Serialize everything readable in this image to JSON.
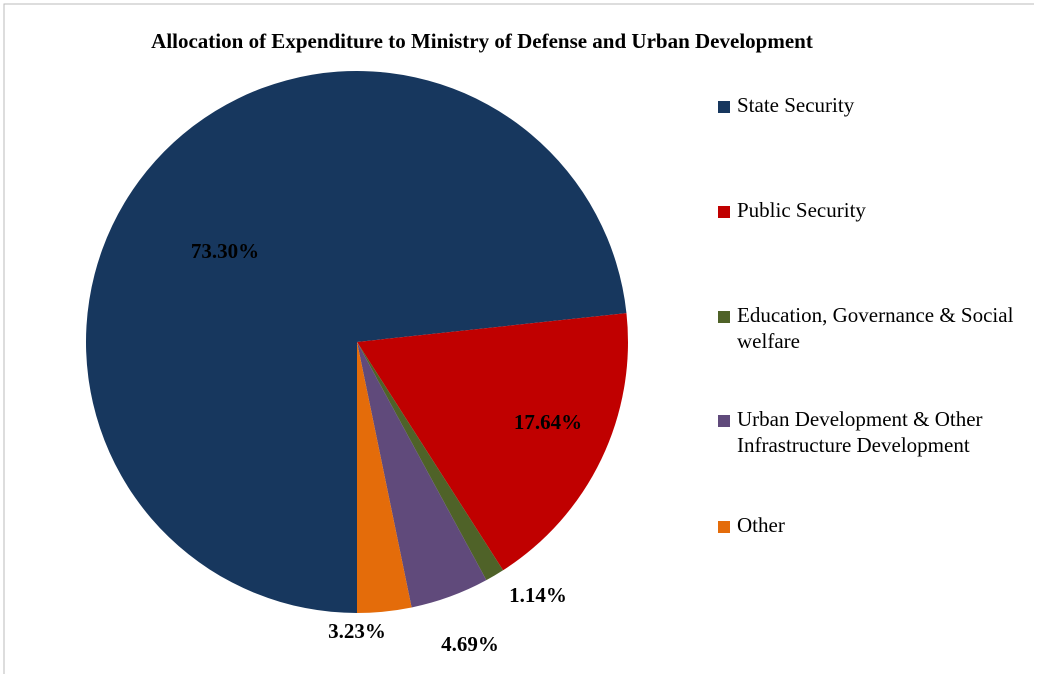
{
  "chart_data": {
    "type": "pie",
    "title": "Allocation of Expenditure to Ministry of Defense and Urban Development",
    "categories": [
      "State Security",
      "Public Security",
      "Education, Governance & Social welfare",
      "Urban Development & Other Infrastructure Development",
      "Other"
    ],
    "values": [
      73.3,
      17.64,
      1.14,
      4.69,
      3.23
    ],
    "value_labels": [
      "73.30%",
      "17.64%",
      "1.14%",
      "4.69%",
      "3.23%"
    ],
    "colors": [
      "#17375e",
      "#c00000",
      "#4f6228",
      "#604a7b",
      "#e46c0a"
    ],
    "legend": "right"
  }
}
